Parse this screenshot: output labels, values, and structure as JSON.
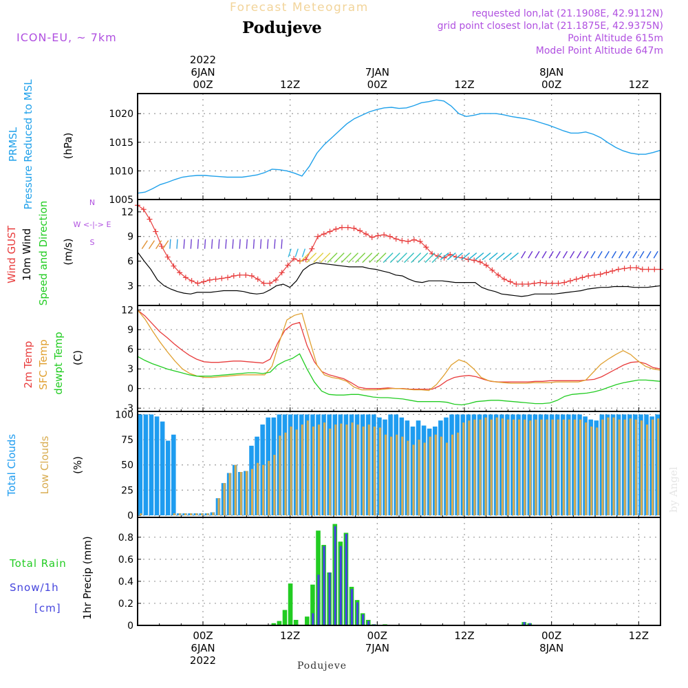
{
  "header": {
    "subtitle": "Forecast Meteogram",
    "location": "Podujeve",
    "model": "ICON-EU, ~ 7km",
    "requested": "requested lon,lat (21.1908E, 42.9112N)",
    "gridpoint": "grid point closest lon,lat (21.1875E, 42.9375N)",
    "point_alt": "Point Altitude 615m",
    "model_alt": "Model Point Altitude 647m",
    "watermark": "by Angel",
    "footer": "Podujeve"
  },
  "colors": {
    "pressure": "#1ea0ea",
    "gust": "#e83c3c",
    "wind": "#000000",
    "temp2m": "#e83c3c",
    "sfc": "#e0a030",
    "dewpt": "#22cc22",
    "total_clouds": "#1e9cf0",
    "low_clouds": "#d8ac50",
    "rain": "#22cc22",
    "snow": "#4444dd",
    "label_pink": "#b050e0"
  },
  "time_axis": {
    "start": "2022-01-05 15Z",
    "end": "2022-01-08 15Z",
    "top": [
      {
        "lines": [
          "2022",
          "6JAN",
          "00Z"
        ],
        "hour": 9
      },
      {
        "lines": [
          "12Z"
        ],
        "hour": 21
      },
      {
        "lines": [
          "7JAN",
          "00Z"
        ],
        "hour": 33
      },
      {
        "lines": [
          "12Z"
        ],
        "hour": 45
      },
      {
        "lines": [
          "8JAN",
          "00Z"
        ],
        "hour": 57
      },
      {
        "lines": [
          "12Z"
        ],
        "hour": 69
      }
    ],
    "bottom": [
      {
        "lines": [
          "00Z",
          "6JAN",
          "2022"
        ],
        "hour": 9
      },
      {
        "lines": [
          "12Z"
        ],
        "hour": 21
      },
      {
        "lines": [
          "00Z",
          "7JAN"
        ],
        "hour": 33
      },
      {
        "lines": [
          "12Z"
        ],
        "hour": 45
      },
      {
        "lines": [
          "00Z",
          "8JAN"
        ],
        "hour": 57
      },
      {
        "lines": [
          "12Z"
        ],
        "hour": 69
      }
    ]
  },
  "chart_data": [
    {
      "type": "line",
      "panel": "pressure",
      "ylabel": [
        "PRMSL",
        "Pressure Reduced to MSL",
        "(hPa)"
      ],
      "ylim": [
        1005,
        1023.5
      ],
      "yticks": [
        "1005",
        "1010",
        "1015",
        "1020"
      ],
      "series": [
        {
          "values": [
            1006.1,
            1006.3,
            1006.9,
            1007.6,
            1008.0,
            1008.5,
            1008.9,
            1009.1,
            1009.2,
            1009.2,
            1009.1,
            1009.0,
            1008.9,
            1008.9,
            1008.9,
            1009.1,
            1009.3,
            1009.7,
            1010.3,
            1010.2,
            1010.0,
            1009.6,
            1009.1,
            1010.8,
            1013.1,
            1014.6,
            1015.8,
            1017.0,
            1018.2,
            1019.1,
            1019.7,
            1020.3,
            1020.7,
            1021.0,
            1021.1,
            1020.9,
            1021.0,
            1021.4,
            1021.9,
            1022.1,
            1022.4,
            1022.2,
            1021.3,
            1020.0,
            1019.5,
            1019.7,
            1020.0,
            1020.0,
            1020.0,
            1019.8,
            1019.5,
            1019.3,
            1019.1,
            1018.8,
            1018.4,
            1018.0,
            1017.5,
            1017.0,
            1016.6,
            1016.6,
            1016.8,
            1016.4,
            1015.8,
            1014.9,
            1014.1,
            1013.5,
            1013.1,
            1012.9,
            1012.9,
            1013.2,
            1013.6
          ]
        }
      ]
    },
    {
      "type": "line",
      "panel": "wind",
      "ylabel": [
        "Wind GUST",
        "10m Wind",
        "Speed and Direction",
        "(m/s)"
      ],
      "compass": [
        "N",
        "W <-|-> E",
        "S"
      ],
      "ylim": [
        0.6,
        13.5
      ],
      "yticks": [
        "3",
        "6",
        "9",
        "12"
      ],
      "series": [
        {
          "name": "gust",
          "values": [
            12.8,
            12.3,
            11.1,
            9.6,
            7.8,
            6.5,
            5.4,
            4.6,
            4.0,
            3.6,
            3.3,
            3.5,
            3.7,
            3.8,
            3.9,
            4.0,
            4.2,
            4.3,
            4.3,
            4.2,
            3.8,
            3.3,
            3.3,
            3.7,
            4.6,
            5.5,
            6.3,
            6.0,
            6.2,
            7.5,
            9.0,
            9.3,
            9.6,
            9.9,
            10.1,
            10.1,
            10.0,
            9.7,
            9.3,
            8.9,
            9.1,
            9.2,
            9.0,
            8.7,
            8.5,
            8.4,
            8.6,
            8.4,
            7.7,
            6.9,
            6.6,
            6.4,
            6.8,
            6.5,
            6.4,
            6.2,
            6.1,
            5.9,
            5.5,
            4.9,
            4.3,
            3.8,
            3.5,
            3.2,
            3.2,
            3.2,
            3.3,
            3.4,
            3.3,
            3.3,
            3.3,
            3.4,
            3.6,
            3.8,
            4.0,
            4.2,
            4.3,
            4.4,
            4.6,
            4.8,
            5.0,
            5.1,
            5.2,
            5.2,
            5.0,
            5.0,
            5.0,
            5.0
          ]
        },
        {
          "name": "wind",
          "values": [
            7.1,
            6.0,
            5.0,
            3.7,
            3.0,
            2.6,
            2.3,
            2.1,
            2.0,
            2.2,
            2.2,
            2.2,
            2.3,
            2.4,
            2.4,
            2.4,
            2.3,
            2.1,
            2.0,
            2.1,
            2.5,
            3.0,
            3.2,
            2.8,
            3.6,
            4.9,
            5.5,
            5.8,
            5.7,
            5.6,
            5.5,
            5.4,
            5.3,
            5.3,
            5.3,
            5.1,
            5.0,
            4.8,
            4.6,
            4.3,
            4.2,
            3.8,
            3.5,
            3.4,
            3.6,
            3.6,
            3.6,
            3.5,
            3.4,
            3.4,
            3.4,
            3.4,
            2.8,
            2.5,
            2.3,
            2.0,
            1.9,
            1.8,
            1.7,
            1.8,
            2.0,
            2.0,
            2.0,
            2.0,
            2.1,
            2.2,
            2.3,
            2.4,
            2.6,
            2.7,
            2.8,
            2.8,
            2.9,
            2.9,
            2.9,
            2.8,
            2.8,
            2.8,
            2.9,
            3.0
          ]
        }
      ]
    },
    {
      "type": "line",
      "panel": "temperature",
      "ylabel": [
        "2m Temp",
        "SFC Temp",
        "dewpt Temp",
        "(C)"
      ],
      "ylim": [
        -3.5,
        12.7
      ],
      "yticks": [
        "-3",
        "0",
        "3",
        "6",
        "9",
        "12"
      ],
      "series": [
        {
          "name": "2m",
          "values": [
            12.0,
            11.1,
            9.9,
            8.7,
            7.8,
            6.8,
            5.9,
            5.1,
            4.5,
            4.1,
            4.0,
            4.0,
            4.1,
            4.2,
            4.2,
            4.1,
            4.0,
            3.9,
            4.5,
            6.9,
            8.9,
            9.8,
            10.1,
            6.6,
            4.1,
            2.6,
            2.1,
            1.8,
            1.5,
            0.9,
            0.2,
            0.0,
            0.0,
            0.0,
            0.1,
            0.0,
            0.0,
            -0.1,
            -0.1,
            -0.1,
            -0.1,
            0.4,
            1.2,
            1.7,
            1.9,
            2.0,
            1.8,
            1.4,
            1.1,
            1.0,
            1.0,
            1.0,
            1.0,
            1.0,
            1.1,
            1.1,
            1.2,
            1.2,
            1.2,
            1.2,
            1.2,
            1.3,
            1.4,
            1.8,
            2.4,
            3.0,
            3.6,
            4.0,
            4.1,
            3.8,
            3.2,
            3.0
          ]
        },
        {
          "name": "sfc",
          "values": [
            12.0,
            10.6,
            8.8,
            7.1,
            5.6,
            4.2,
            3.0,
            2.3,
            1.9,
            1.7,
            1.7,
            1.8,
            1.9,
            2.0,
            2.1,
            2.1,
            2.1,
            2.1,
            3.4,
            7.2,
            10.5,
            11.2,
            11.5,
            7.5,
            3.6,
            2.1,
            1.7,
            1.5,
            1.1,
            0.2,
            -0.2,
            -0.2,
            -0.2,
            -0.1,
            0.0,
            0.0,
            -0.1,
            -0.2,
            -0.2,
            -0.3,
            0.6,
            2.0,
            3.6,
            4.4,
            4.0,
            3.0,
            1.7,
            1.2,
            1.0,
            0.9,
            0.8,
            0.8,
            0.8,
            0.9,
            0.9,
            0.9,
            1.0,
            1.0,
            1.0,
            1.0,
            1.3,
            2.5,
            3.7,
            4.5,
            5.2,
            5.8,
            5.2,
            4.2,
            3.4,
            3.0,
            2.8
          ]
        },
        {
          "name": "dewpt",
          "values": [
            4.9,
            4.3,
            3.8,
            3.4,
            3.0,
            2.7,
            2.4,
            2.1,
            1.9,
            1.9,
            1.9,
            2.0,
            2.1,
            2.2,
            2.3,
            2.4,
            2.4,
            2.3,
            2.5,
            3.6,
            4.2,
            4.6,
            5.3,
            3.0,
            1.0,
            -0.4,
            -0.9,
            -1.0,
            -1.0,
            -0.9,
            -0.9,
            -1.1,
            -1.3,
            -1.4,
            -1.4,
            -1.5,
            -1.6,
            -1.8,
            -2.0,
            -2.0,
            -2.0,
            -2.0,
            -2.1,
            -2.4,
            -2.5,
            -2.3,
            -2.0,
            -1.9,
            -1.8,
            -1.8,
            -1.9,
            -2.0,
            -2.1,
            -2.2,
            -2.3,
            -2.3,
            -2.2,
            -1.8,
            -1.2,
            -0.9,
            -0.8,
            -0.7,
            -0.5,
            -0.2,
            0.2,
            0.6,
            0.9,
            1.1,
            1.3,
            1.3,
            1.2,
            1.1
          ]
        }
      ]
    },
    {
      "type": "bar",
      "panel": "clouds",
      "ylabel": [
        "Total Clouds",
        "Low Clouds",
        "(%)"
      ],
      "ylim": [
        -2,
        103
      ],
      "yticks": [
        "0",
        "25",
        "50",
        "75",
        "100"
      ],
      "series": [
        {
          "name": "total",
          "values": [
            100,
            100,
            100,
            98,
            93,
            74,
            80,
            2,
            2,
            2,
            2,
            2,
            2,
            3,
            17,
            32,
            42,
            50,
            43,
            44,
            69,
            78,
            90,
            97,
            97,
            100,
            100,
            100,
            100,
            100,
            100,
            100,
            100,
            100,
            100,
            100,
            100,
            100,
            100,
            100,
            100,
            100,
            100,
            97,
            95,
            100,
            100,
            97,
            94,
            88,
            94,
            89,
            86,
            88,
            94,
            97,
            100,
            100,
            100,
            100,
            100,
            100,
            100,
            100,
            100,
            100,
            100,
            100,
            100,
            100,
            100,
            100,
            100,
            100,
            100,
            100,
            100,
            100,
            100,
            100,
            98,
            95,
            94,
            100,
            100,
            100,
            100,
            100,
            100,
            100,
            100,
            100,
            98,
            100
          ]
        },
        {
          "name": "low",
          "values": [
            2,
            0,
            0,
            0,
            0,
            0,
            2,
            2,
            2,
            2,
            2,
            2,
            2,
            3,
            17,
            32,
            42,
            50,
            43,
            44,
            46,
            52,
            50,
            54,
            60,
            79,
            82,
            88,
            85,
            90,
            94,
            88,
            90,
            92,
            86,
            90,
            91,
            90,
            92,
            90,
            88,
            90,
            88,
            87,
            80,
            78,
            80,
            78,
            74,
            70,
            75,
            72,
            78,
            80,
            78,
            72,
            80,
            82,
            92,
            94,
            95,
            95,
            97,
            95,
            97,
            96,
            95,
            95,
            95,
            95,
            94,
            95,
            95,
            95,
            95,
            95,
            95,
            95,
            95,
            95,
            92,
            88,
            87,
            95,
            97,
            97,
            95,
            95,
            96,
            95,
            94,
            90,
            95,
            96
          ]
        }
      ]
    },
    {
      "type": "bar",
      "panel": "precip",
      "legend": [
        "Total Rain",
        "Snow/1h",
        "[cm]"
      ],
      "ylabel": [
        "1hr Precip (mm)"
      ],
      "ylim": [
        0,
        0.98
      ],
      "yticks": [
        "0",
        "0.2",
        "0.4",
        "0.6",
        "0.8"
      ],
      "series": [
        {
          "name": "rain",
          "values": [
            0,
            0,
            0,
            0,
            0,
            0,
            0,
            0,
            0,
            0,
            0,
            0,
            0,
            0,
            0,
            0,
            0,
            0,
            0,
            0,
            0,
            0,
            0,
            0,
            0.02,
            0.04,
            0.14,
            0.38,
            0.05,
            0,
            0.08,
            0.37,
            0.86,
            0.73,
            0.48,
            0.92,
            0.76,
            0.84,
            0.35,
            0.23,
            0.11,
            0.05,
            0.01,
            0,
            0.01,
            0,
            0,
            0,
            0,
            0,
            0,
            0,
            0,
            0,
            0,
            0,
            0,
            0,
            0,
            0,
            0,
            0,
            0,
            0,
            0,
            0,
            0,
            0,
            0,
            0.03,
            0.02,
            0,
            0,
            0,
            0,
            0,
            0,
            0,
            0,
            0,
            0,
            0,
            0,
            0,
            0,
            0,
            0,
            0,
            0,
            0,
            0,
            0,
            0,
            0
          ]
        },
        {
          "name": "snow",
          "values": [
            0,
            0,
            0,
            0,
            0,
            0,
            0,
            0,
            0,
            0,
            0,
            0,
            0,
            0,
            0,
            0,
            0,
            0,
            0,
            0,
            0,
            0,
            0,
            0,
            0,
            0,
            0,
            0,
            0,
            0,
            0,
            0.11,
            0.46,
            0.72,
            0.48,
            0.9,
            0.72,
            0.83,
            0.33,
            0.21,
            0.1,
            0.04,
            0.01,
            0,
            0,
            0,
            0,
            0,
            0,
            0,
            0,
            0,
            0,
            0,
            0,
            0,
            0,
            0,
            0,
            0,
            0,
            0,
            0,
            0,
            0,
            0,
            0,
            0,
            0,
            0.03,
            0.02,
            0,
            0,
            0,
            0,
            0,
            0,
            0,
            0,
            0,
            0,
            0,
            0,
            0,
            0,
            0,
            0,
            0,
            0,
            0,
            0,
            0,
            0,
            0
          ]
        }
      ]
    }
  ]
}
